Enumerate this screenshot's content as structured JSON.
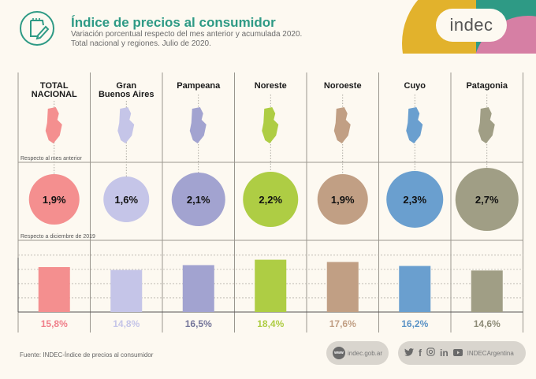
{
  "header": {
    "title": "Índice de precios al consumidor",
    "subtitle_line1": "Variación porcentual respecto del mes anterior y acumulada 2020.",
    "subtitle_line2": "Total nacional y regiones. Julio de 2020.",
    "icon": "notepad-pencil-icon",
    "brand_colors": {
      "teal": "#2e9a85",
      "yellow": "#e2b22c",
      "pink": "#d67fa4"
    }
  },
  "logo": {
    "text": "indec"
  },
  "chart_data": {
    "type": "bar",
    "title": "Índice de precios al consumidor",
    "subtitle": "Variación porcentual respecto del mes anterior y acumulada 2020. Total nacional y regiones. Julio de 2020.",
    "categories": [
      "TOTAL NACIONAL",
      "Gran Buenos Aires",
      "Pampeana",
      "Noreste",
      "Noroeste",
      "Cuyo",
      "Patagonia"
    ],
    "category_lines": [
      [
        "TOTAL",
        "NACIONAL"
      ],
      [
        "Gran",
        "Buenos Aires"
      ],
      [
        "Pampeana"
      ],
      [
        "Noreste"
      ],
      [
        "Noroeste"
      ],
      [
        "Cuyo"
      ],
      [
        "Patagonia"
      ]
    ],
    "colors": [
      "#f48f8f",
      "#c5c5e8",
      "#a2a3d0",
      "#aecd44",
      "#c19f84",
      "#6a9fcf",
      "#a09e85"
    ],
    "label_colors": [
      "#f07f8a",
      "#c5c5e8",
      "#75769a",
      "#aecd44",
      "#c19f84",
      "#5b93c6",
      "#8e8c78"
    ],
    "series": [
      {
        "name": "Respecto al mes anterior",
        "display": "bubble",
        "values": [
          1.9,
          1.6,
          2.1,
          2.2,
          1.9,
          2.3,
          2.7
        ],
        "labels": [
          "1,9%",
          "1,6%",
          "2,1%",
          "2,2%",
          "1,9%",
          "2,3%",
          "2,7%"
        ]
      },
      {
        "name": "Respecto a diciembre de 2019",
        "display": "bar",
        "values": [
          15.8,
          14.8,
          16.5,
          18.4,
          17.6,
          16.2,
          14.6
        ],
        "labels": [
          "15,8%",
          "14,8%",
          "16,5%",
          "18,4%",
          "17,6%",
          "16,2%",
          "14,6%"
        ]
      }
    ],
    "ylim": [
      0,
      23
    ],
    "grid": true,
    "xlabel": "",
    "ylabel": ""
  },
  "footer": {
    "source": "Fuente: INDEC-Índice de precios al consumidor",
    "web_badge": "www",
    "website": "indec.gob.ar",
    "social_handle": "INDECArgentina",
    "social_icons": [
      "twitter-icon",
      "facebook-icon",
      "instagram-icon",
      "linkedin-icon",
      "youtube-icon"
    ]
  }
}
